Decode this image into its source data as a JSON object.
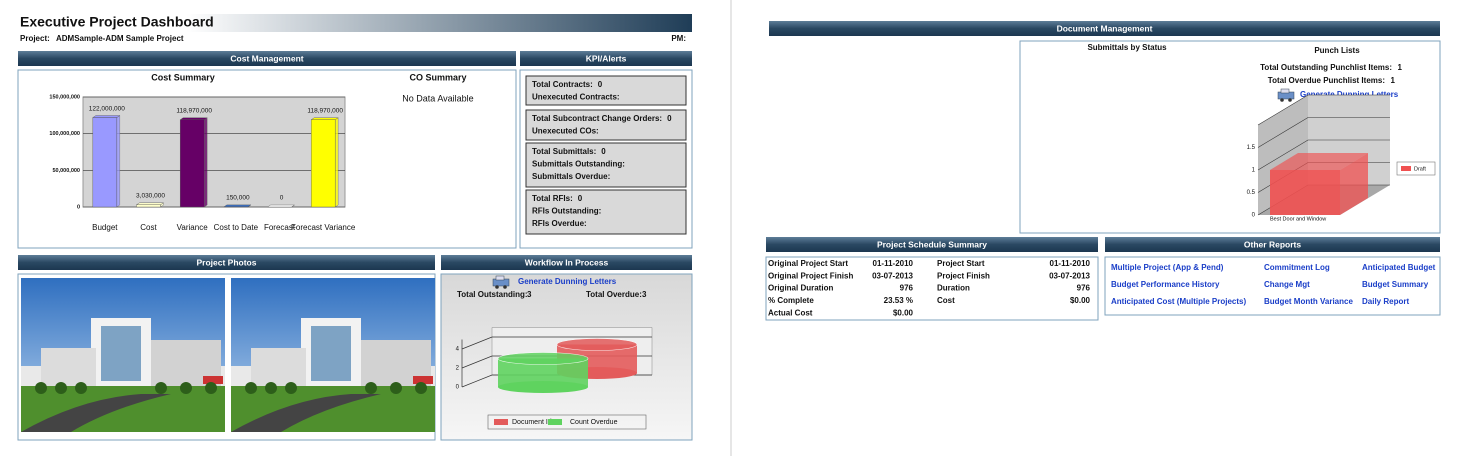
{
  "header": {
    "title": "Executive Project Dashboard",
    "project_label": "Project:",
    "project": "ADMSample-ADM Sample Project",
    "pm_label": "PM:"
  },
  "cost_management": {
    "title": "Cost Management",
    "cost_summary": {
      "type": "bar",
      "title": "Cost Summary",
      "categories": [
        "Budget",
        "Cost",
        "Variance",
        "Cost to Date",
        "Forecast",
        "Forecast Variance"
      ],
      "values": [
        122000000,
        3030000,
        118970000,
        150000,
        0,
        118970000
      ],
      "value_labels": [
        "122,000,000",
        "3,030,000",
        "118,970,000",
        "150,000",
        "0",
        "118,970,000"
      ],
      "colors": [
        "#9999ff",
        "#ffffcc",
        "#660066",
        "#3a6fc4",
        "#ffffff",
        "#ffff00"
      ],
      "ylim": [
        0,
        150000000
      ],
      "yticks": [
        0,
        {
          "value": 50000000,
          "label": "50,000,000"
        },
        {
          "value": 100000000,
          "label": "100,000,000"
        },
        {
          "value": 150000000,
          "label": "150,000,000"
        }
      ]
    },
    "co_summary": {
      "title": "CO Summary",
      "message": "No Data Available"
    }
  },
  "kpi_alerts": {
    "title": "KPI/Alerts",
    "groups": [
      [
        {
          "label": "Total Contracts:",
          "value": 0
        },
        {
          "label": "Unexecuted Contracts:"
        }
      ],
      [
        {
          "label": "Total Subcontract Change Orders:",
          "value": 0
        },
        {
          "label": "Unexecuted COs:"
        }
      ],
      [
        {
          "label": "Total Submittals:",
          "value": 0
        },
        {
          "label": "Submittals Outstanding:"
        },
        {
          "label": "Submittals Overdue:"
        }
      ],
      [
        {
          "label": "Total RFIs:",
          "value": 0
        },
        {
          "label": "RFIs Outstanding:"
        },
        {
          "label": "RFIs Overdue:"
        }
      ]
    ]
  },
  "project_photos": {
    "title": "Project Photos"
  },
  "workflow": {
    "title": "Workflow In Process",
    "link": "Generate Dunning Letters",
    "stats": [
      {
        "label": "Total Outstanding:",
        "value": 3
      },
      {
        "label": "Total Overdue:",
        "value": 3
      }
    ],
    "chart": {
      "type": "bar",
      "series": [
        {
          "name": "Document Id",
          "color": "#e35b5b",
          "values": [
            3
          ]
        },
        {
          "name": "Count Overdue",
          "color": "#5fd35f",
          "values": [
            3
          ]
        }
      ],
      "ylim": [
        0,
        5
      ],
      "yticks": [
        0,
        2,
        4
      ]
    }
  },
  "document_management": {
    "title": "Document Management",
    "submittals_title": "Submittals by Status",
    "punch_lists": {
      "title": "Punch Lists",
      "stats": [
        {
          "label": "Total Outstanding Punchlist Items:",
          "value": 1
        },
        {
          "label": "Total Overdue Punchlist Items:",
          "value": 1
        }
      ],
      "link": "Generate Dunning Letters",
      "chart": {
        "type": "bar",
        "categories": [
          "Best Door and Window"
        ],
        "series": [
          {
            "name": "Draft",
            "color": "#f05050",
            "values": [
              1
            ]
          }
        ],
        "ylim": [
          0,
          2
        ],
        "yticks": [
          0,
          0.5,
          1,
          1.5
        ]
      }
    }
  },
  "schedule": {
    "title": "Project Schedule Summary",
    "rows": [
      [
        "Original Project Start",
        "01-11-2010",
        "Project Start",
        "01-11-2010"
      ],
      [
        "Original Project Finish",
        "03-07-2013",
        "Project Finish",
        "03-07-2013"
      ],
      [
        "Original Duration",
        "976",
        "Duration",
        "976"
      ],
      [
        "% Complete",
        "23.53 %",
        "Cost",
        "$0.00"
      ],
      [
        "Actual Cost",
        "$0.00"
      ]
    ]
  },
  "other_reports": {
    "title": "Other Reports",
    "links": [
      [
        "Multiple Project (App & Pend)",
        "Commitment Log",
        "Anticipated Budget"
      ],
      [
        "Budget Performance History",
        "Change Mgt",
        "Budget Summary"
      ],
      [
        "Anticipated Cost (Multiple Projects)",
        "Budget Month Variance",
        "Daily Report"
      ]
    ]
  }
}
